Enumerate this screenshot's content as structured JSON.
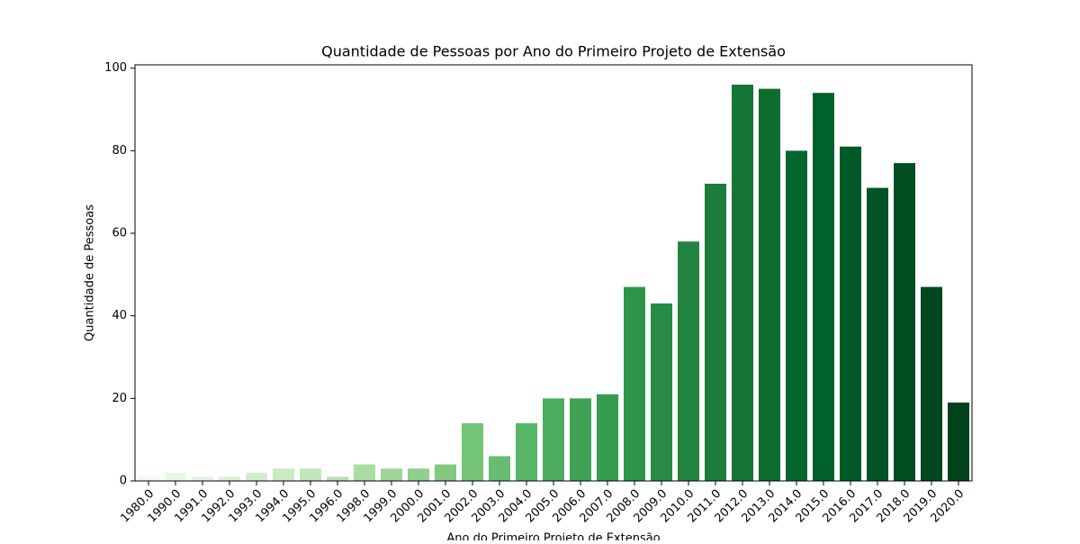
{
  "chart_data": {
    "type": "bar",
    "title": "Quantidade de Pessoas por Ano do Primeiro Projeto de Extensão",
    "xlabel": "Ano do Primeiro Projeto de Extensão",
    "ylabel": "Quantidade de Pessoas",
    "categories": [
      "1980.0",
      "1990.0",
      "1991.0",
      "1992.0",
      "1993.0",
      "1994.0",
      "1995.0",
      "1996.0",
      "1998.0",
      "1999.0",
      "2000.0",
      "2001.0",
      "2002.0",
      "2003.0",
      "2004.0",
      "2005.0",
      "2006.0",
      "2007.0",
      "2008.0",
      "2009.0",
      "2010.0",
      "2011.0",
      "2012.0",
      "2013.0",
      "2014.0",
      "2015.0",
      "2016.0",
      "2017.0",
      "2018.0",
      "2019.0",
      "2020.0"
    ],
    "values": [
      1,
      2,
      1,
      1,
      2,
      3,
      3,
      1,
      4,
      3,
      3,
      4,
      14,
      6,
      14,
      20,
      20,
      21,
      47,
      43,
      58,
      72,
      96,
      95,
      80,
      94,
      81,
      71,
      77,
      47,
      19
    ],
    "colors": [
      "#f0f9ec",
      "#eaf7e6",
      "#e3f4de",
      "#dbf1d6",
      "#d3eecd",
      "#caeac3",
      "#c0e6b9",
      "#b5e1ae",
      "#a9dca3",
      "#9dd697",
      "#90d08b",
      "#82c97f",
      "#74c476",
      "#66bc6f",
      "#58b567",
      "#4bac5f",
      "#3fa357",
      "#379b50",
      "#2f934a",
      "#288b45",
      "#228440",
      "#1b7c3b",
      "#157436",
      "#0d6d31",
      "#06672e",
      "#01612b",
      "#005a28",
      "#005425",
      "#004d21",
      "#00471e",
      "#00421a"
    ],
    "ylim": [
      0,
      100.8
    ],
    "yticks": [
      0,
      20,
      40,
      60,
      80,
      100
    ],
    "grid": false
  }
}
